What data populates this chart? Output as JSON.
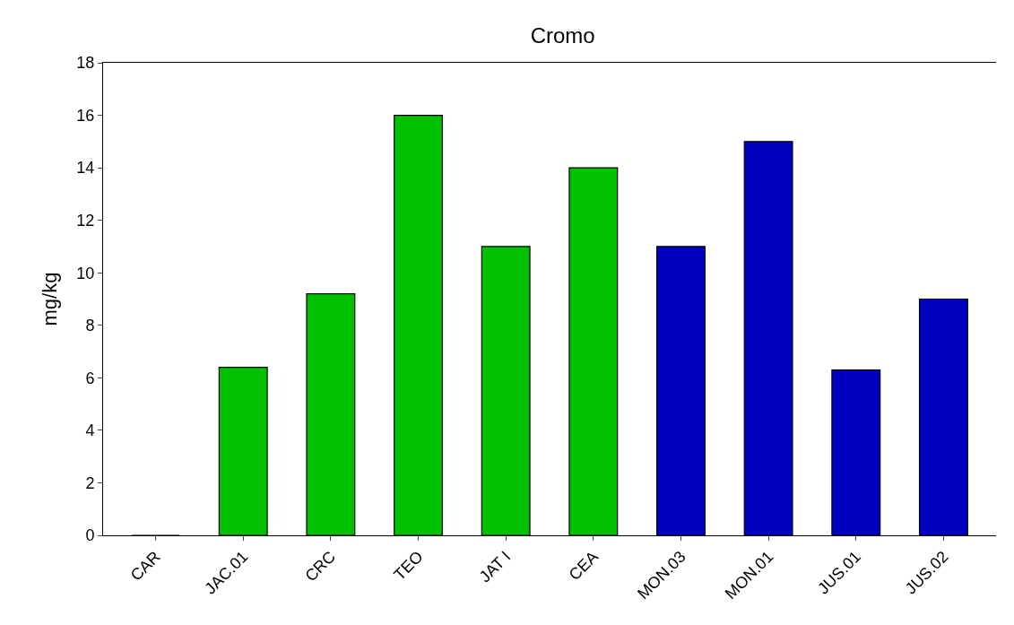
{
  "chart_data": {
    "type": "bar",
    "title": "Cromo",
    "ylabel": "mg/kg",
    "categories": [
      "CAR",
      "JAC.01",
      "CRC",
      "TEO",
      "JAT I",
      "CEA",
      "MON.03",
      "MON.01",
      "JUS.01",
      "JUS.02"
    ],
    "values": [
      0,
      6.4,
      9.2,
      16,
      11,
      14,
      11,
      15,
      6.3,
      9
    ],
    "colors": [
      "#00c000",
      "#00c000",
      "#00c000",
      "#00c000",
      "#00c000",
      "#00c000",
      "#0000c0",
      "#0000c0",
      "#0000c0",
      "#0000c0"
    ],
    "ylim": [
      0,
      18
    ],
    "yticks": [
      0,
      2,
      4,
      6,
      8,
      10,
      12,
      14,
      16,
      18
    ]
  }
}
